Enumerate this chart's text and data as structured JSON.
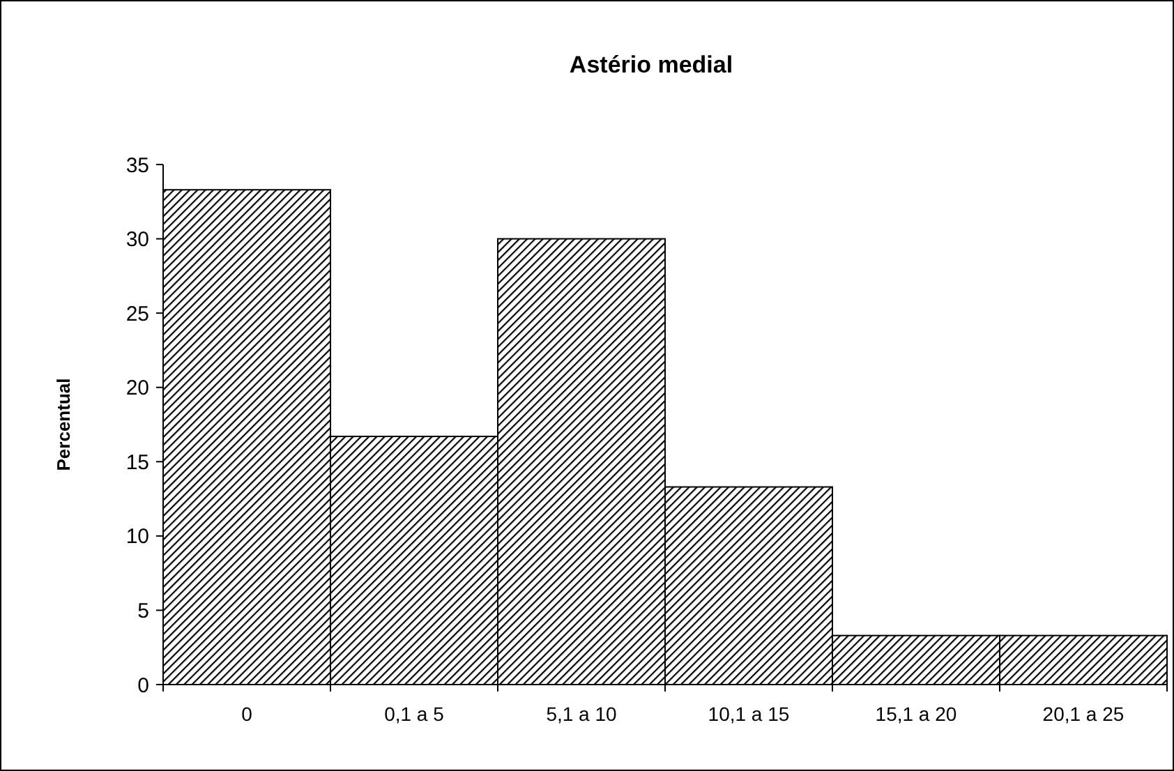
{
  "chart_data": {
    "type": "bar",
    "title": "Astério medial",
    "ylabel": "Percentual",
    "categories": [
      "0",
      "0,1 a 5",
      "5,1 a 10",
      "10,1 a 15",
      "15,1 a 20",
      "20,1 a 25"
    ],
    "values": [
      33.3,
      16.7,
      30,
      13.3,
      3.3,
      3.3
    ],
    "color": "#000000",
    "ylim": [
      0,
      35
    ],
    "yticks": [
      0,
      5,
      10,
      15,
      20,
      25,
      30,
      35
    ],
    "grid": false
  }
}
